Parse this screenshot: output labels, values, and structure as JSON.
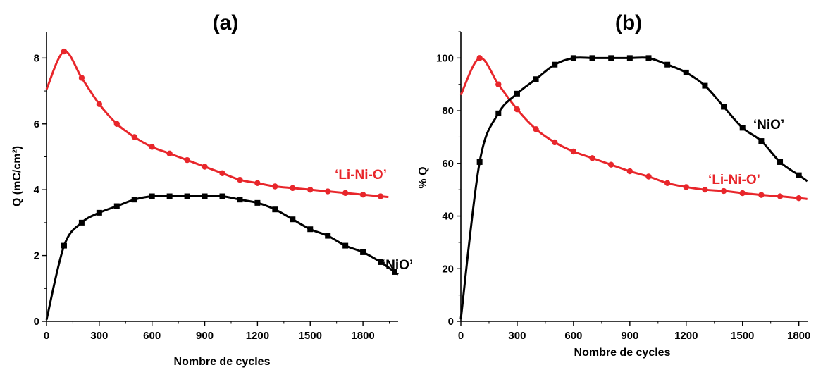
{
  "chart_data": [
    {
      "type": "line",
      "panel_label": "(a)",
      "xlabel": "Nombre de cycles",
      "ylabel": "Q (mC/cm²)",
      "xlim": [
        0,
        2000
      ],
      "ylim": [
        0,
        8.8
      ],
      "xticks": [
        0,
        300,
        600,
        900,
        1200,
        1500,
        1800
      ],
      "yticks": [
        0,
        2,
        4,
        6,
        8
      ],
      "grid": false,
      "series": [
        {
          "name": "‘Li-Ni-O’",
          "color": "#e8262b",
          "marker": "circle",
          "x": [
            0,
            100,
            200,
            300,
            400,
            500,
            600,
            700,
            800,
            900,
            1000,
            1100,
            1200,
            1300,
            1400,
            1500,
            1600,
            1700,
            1800,
            1900
          ],
          "y": [
            7.05,
            8.2,
            7.4,
            6.6,
            6.0,
            5.6,
            5.3,
            5.1,
            4.9,
            4.7,
            4.5,
            4.3,
            4.2,
            4.1,
            4.05,
            4.0,
            3.95,
            3.9,
            3.85,
            3.8
          ]
        },
        {
          "name": "‘NiO’",
          "color": "#000000",
          "marker": "square",
          "x": [
            0,
            100,
            200,
            300,
            400,
            500,
            600,
            700,
            800,
            900,
            1000,
            1100,
            1200,
            1300,
            1400,
            1500,
            1600,
            1700,
            1800,
            1900,
            1980
          ],
          "y": [
            0.05,
            2.3,
            3.0,
            3.3,
            3.5,
            3.7,
            3.8,
            3.8,
            3.8,
            3.8,
            3.8,
            3.7,
            3.6,
            3.4,
            3.1,
            2.8,
            2.6,
            2.3,
            2.1,
            1.8,
            1.5
          ]
        }
      ]
    },
    {
      "type": "line",
      "panel_label": "(b)",
      "xlabel": "Nombre de cycles",
      "ylabel": "% Q",
      "xlim": [
        0,
        1850
      ],
      "ylim": [
        0,
        110
      ],
      "xticks": [
        0,
        300,
        600,
        900,
        1200,
        1500,
        1800
      ],
      "yticks": [
        0,
        20,
        40,
        60,
        80,
        100
      ],
      "grid": false,
      "series": [
        {
          "name": "‘Li-Ni-O’",
          "color": "#e8262b",
          "marker": "circle",
          "x": [
            0,
            100,
            200,
            300,
            400,
            500,
            600,
            700,
            800,
            900,
            1000,
            1100,
            1200,
            1300,
            1400,
            1500,
            1600,
            1700,
            1800
          ],
          "y": [
            86,
            100,
            90,
            80.5,
            73,
            68,
            64.5,
            62,
            59.5,
            57,
            55,
            52.5,
            51,
            50,
            49.5,
            48.7,
            48,
            47.5,
            46.8
          ]
        },
        {
          "name": "‘NiO’",
          "color": "#000000",
          "marker": "square",
          "x": [
            0,
            100,
            200,
            300,
            400,
            500,
            600,
            700,
            800,
            900,
            1000,
            1100,
            1200,
            1300,
            1400,
            1500,
            1600,
            1700,
            1800
          ],
          "y": [
            1,
            60.5,
            79,
            86.5,
            92,
            97.5,
            100,
            100,
            100,
            100,
            100,
            97.5,
            94.5,
            89.5,
            81.5,
            73.5,
            68.5,
            60.5,
            55.5
          ]
        }
      ]
    }
  ]
}
